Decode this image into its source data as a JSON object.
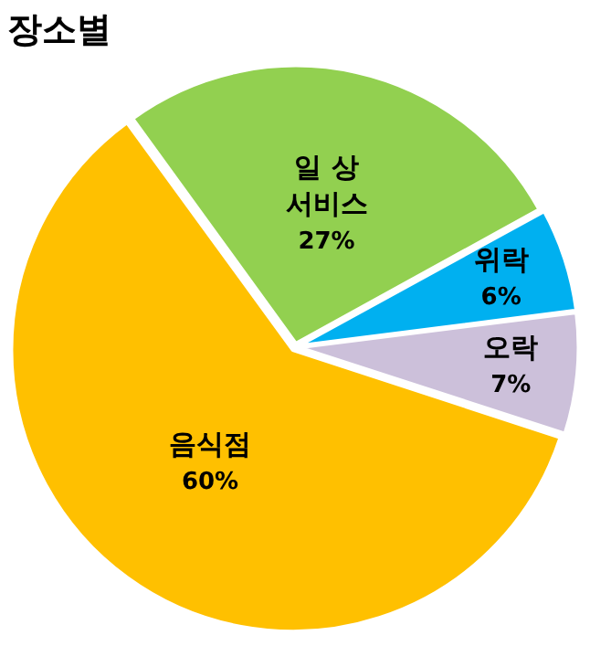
{
  "chart_data": {
    "type": "pie",
    "title": "장소별",
    "categories": [
      "일 상 서비스",
      "위락",
      "오락",
      "음식점"
    ],
    "values": [
      27,
      6,
      7,
      60
    ],
    "colors": [
      "#92d050",
      "#00b0f0",
      "#ccc0da",
      "#ffc000"
    ],
    "value_labels": [
      "27%",
      "6%",
      "7%",
      "60%"
    ],
    "legend": false
  }
}
